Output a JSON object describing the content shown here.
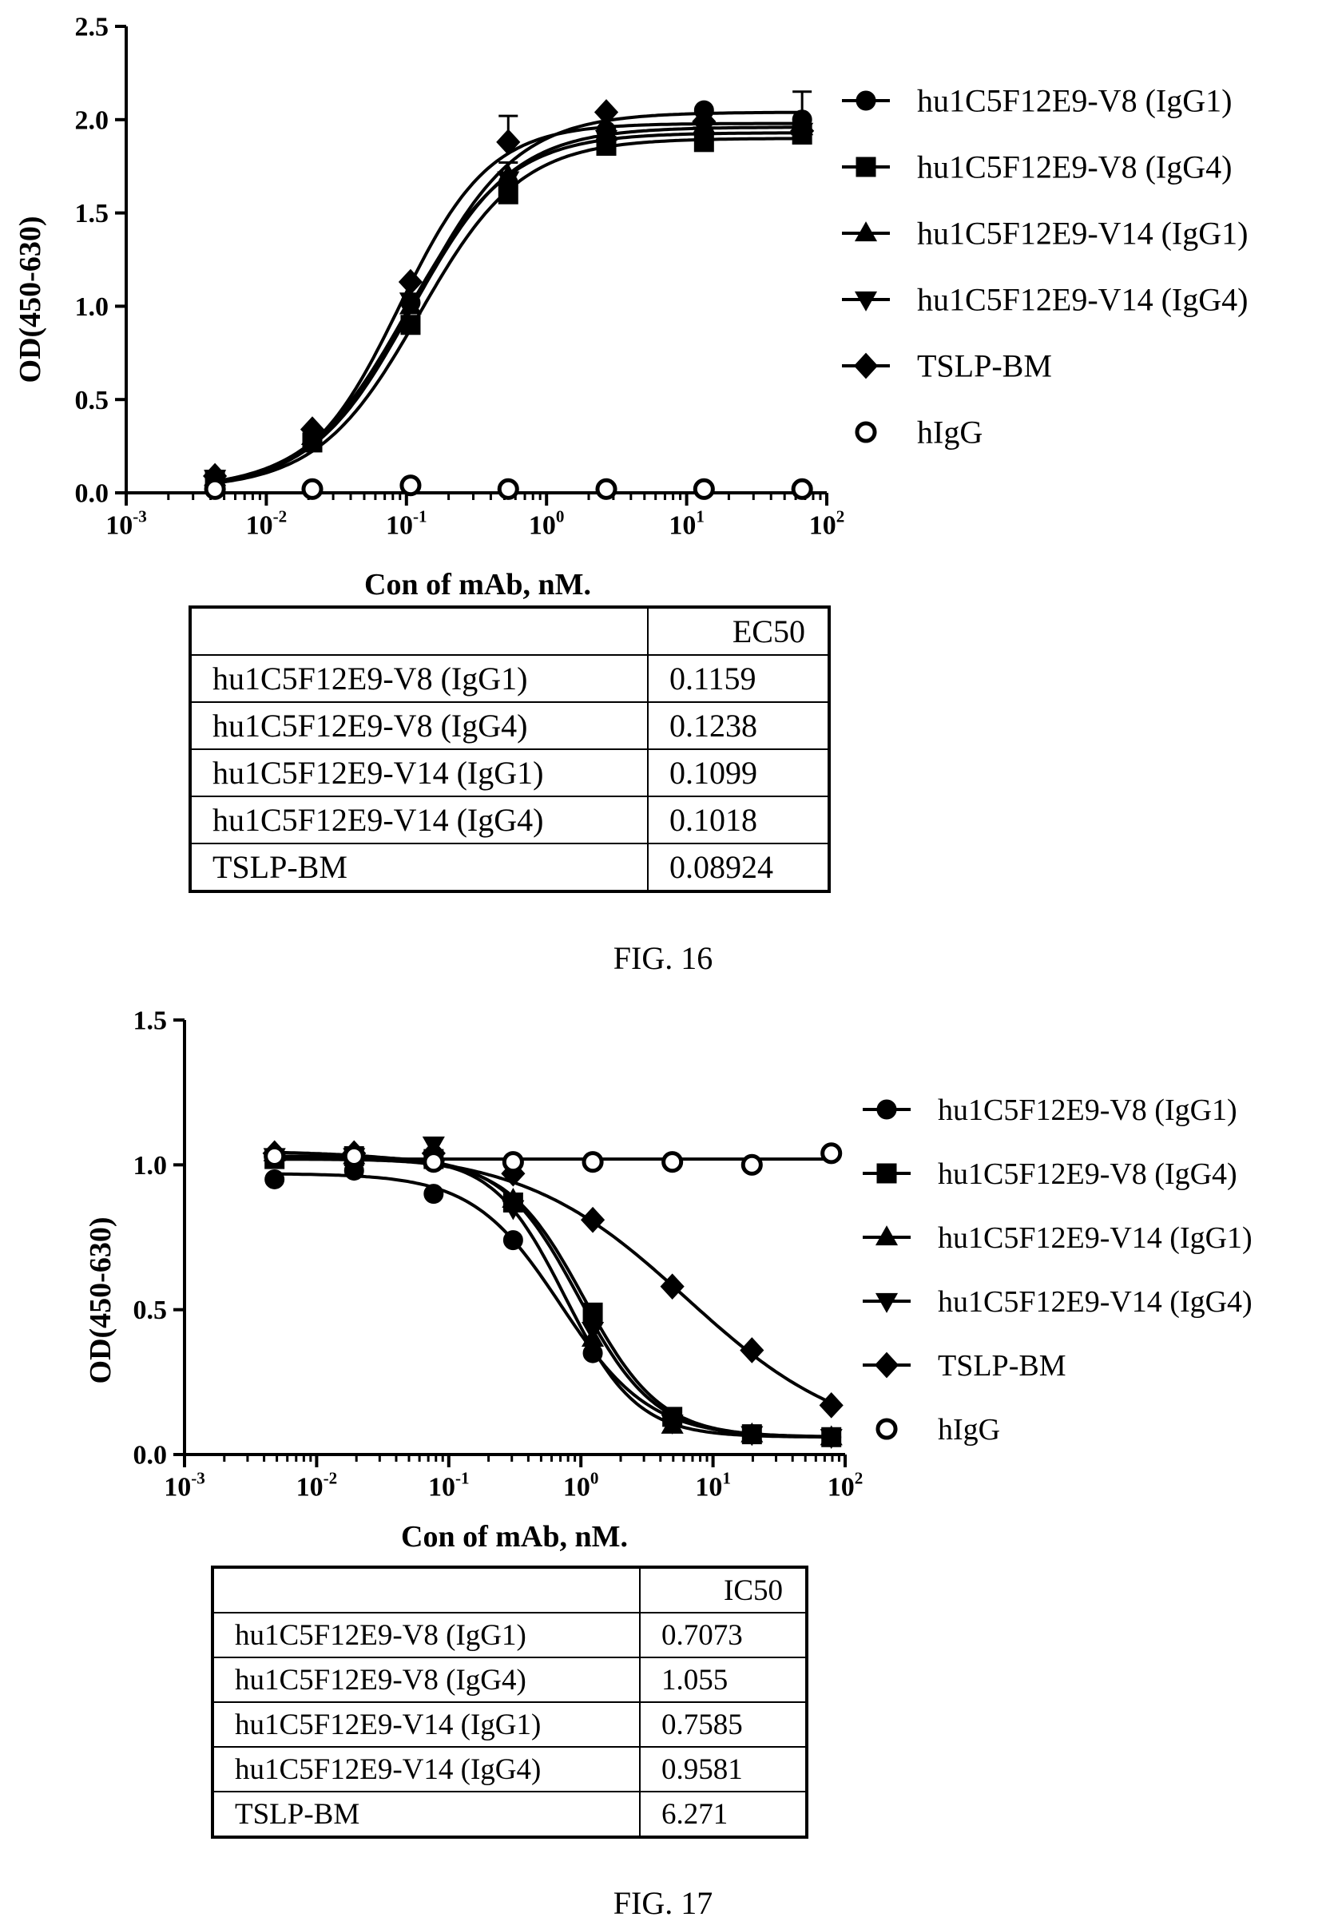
{
  "chart_data": [
    {
      "type": "scatter",
      "figure_label": "FIG. 16",
      "title": "",
      "xlabel": "Con of mAb, nM.",
      "ylabel": "OD(450-630)",
      "xscale": "log",
      "xlim": [
        0.001,
        100
      ],
      "ylim": [
        0,
        2.5
      ],
      "x_ticks": [
        0.001,
        0.01,
        0.1,
        1,
        10,
        100
      ],
      "x_tick_labels": [
        {
          "base": "10",
          "exp": "-3"
        },
        {
          "base": "10",
          "exp": "-2"
        },
        {
          "base": "10",
          "exp": "-1"
        },
        {
          "base": "10",
          "exp": "0"
        },
        {
          "base": "10",
          "exp": "1"
        },
        {
          "base": "10",
          "exp": "2"
        }
      ],
      "y_ticks": [
        0,
        0.5,
        1.0,
        1.5,
        2.0,
        2.5
      ],
      "y_tick_labels": [
        "0.0",
        "0.5",
        "1.0",
        "1.5",
        "2.0",
        "2.5"
      ],
      "grid": false,
      "legend_placement": "right",
      "x": [
        0.0043,
        0.0213,
        0.107,
        0.533,
        2.67,
        13.3,
        66.7
      ],
      "series": [
        {
          "name": "hu1C5F12E9-V8 (IgG1)",
          "marker": "circle",
          "values": [
            0.08,
            0.29,
            1.02,
            1.66,
            1.94,
            2.05,
            2.0
          ],
          "fit": {
            "bottom": 0.02,
            "top": 2.04,
            "ec50": 0.1159,
            "hill": 1.2
          }
        },
        {
          "name": "hu1C5F12E9-V8 (IgG4)",
          "marker": "square",
          "values": [
            0.07,
            0.27,
            0.9,
            1.6,
            1.86,
            1.88,
            1.92
          ],
          "fit": {
            "bottom": 0.02,
            "top": 1.9,
            "ec50": 0.1238,
            "hill": 1.2
          }
        },
        {
          "name": "hu1C5F12E9-V14 (IgG1)",
          "marker": "triangle-up",
          "values": [
            0.08,
            0.3,
            1.0,
            1.7,
            1.93,
            1.97,
            1.96
          ],
          "fit": {
            "bottom": 0.02,
            "top": 1.96,
            "ec50": 0.1099,
            "hill": 1.2
          }
        },
        {
          "name": "hu1C5F12E9-V14 (IgG4)",
          "marker": "triangle-down",
          "values": [
            0.08,
            0.3,
            1.03,
            1.68,
            1.9,
            1.92,
            1.94
          ],
          "fit": {
            "bottom": 0.02,
            "top": 1.93,
            "ec50": 0.1018,
            "hill": 1.2
          }
        },
        {
          "name": "TSLP-BM",
          "marker": "diamond",
          "values": [
            0.09,
            0.34,
            1.13,
            1.88,
            2.04,
            1.99,
            1.94
          ],
          "fit": {
            "bottom": 0.02,
            "top": 1.98,
            "ec50": 0.08924,
            "hill": 1.35
          }
        },
        {
          "name": "hIgG",
          "marker": "circle-open",
          "values": [
            0.02,
            0.02,
            0.04,
            0.02,
            0.02,
            0.02,
            0.02
          ],
          "fit": null
        }
      ],
      "error_bars": [
        {
          "series": "TSLP-BM",
          "x": 0.533,
          "upper": 2.02
        },
        {
          "series": "hu1C5F12E9-V14 (IgG1)",
          "x": 0.533,
          "upper": 1.77
        },
        {
          "series": "hu1C5F12E9-V8 (IgG1)",
          "x": 66.7,
          "upper": 2.15
        }
      ],
      "table": {
        "header": [
          "",
          "EC50"
        ],
        "rows": [
          [
            "hu1C5F12E9-V8 (IgG1)",
            "0.1159"
          ],
          [
            "hu1C5F12E9-V8 (IgG4)",
            "0.1238"
          ],
          [
            "hu1C5F12E9-V14 (IgG1)",
            "0.1099"
          ],
          [
            "hu1C5F12E9-V14 (IgG4)",
            "0.1018"
          ],
          [
            "TSLP-BM",
            "0.08924"
          ]
        ]
      }
    },
    {
      "type": "scatter",
      "figure_label": "FIG. 17",
      "title": "",
      "xlabel": "Con of mAb, nM.",
      "ylabel": "OD(450-630)",
      "xscale": "log",
      "xlim": [
        0.001,
        100
      ],
      "ylim": [
        0,
        1.5
      ],
      "x_ticks": [
        0.001,
        0.01,
        0.1,
        1,
        10,
        100
      ],
      "x_tick_labels": [
        {
          "base": "10",
          "exp": "-3"
        },
        {
          "base": "10",
          "exp": "-2"
        },
        {
          "base": "10",
          "exp": "-1"
        },
        {
          "base": "10",
          "exp": "0"
        },
        {
          "base": "10",
          "exp": "1"
        },
        {
          "base": "10",
          "exp": "2"
        }
      ],
      "y_ticks": [
        0,
        0.5,
        1.0,
        1.5
      ],
      "y_tick_labels": [
        "0.0",
        "0.5",
        "1.0",
        "1.5"
      ],
      "grid": false,
      "legend_placement": "right",
      "x": [
        0.0048,
        0.0192,
        0.0768,
        0.307,
        1.23,
        4.92,
        19.7,
        78.6
      ],
      "series": [
        {
          "name": "hu1C5F12E9-V8 (IgG1)",
          "marker": "circle",
          "values": [
            0.95,
            0.98,
            0.9,
            0.74,
            0.35,
            0.12,
            0.07,
            0.06
          ],
          "fit": {
            "bottom": 0.06,
            "top": 0.97,
            "ic50": 0.7073,
            "hill": 1.3
          }
        },
        {
          "name": "hu1C5F12E9-V8 (IgG4)",
          "marker": "square",
          "values": [
            1.02,
            1.03,
            1.02,
            0.87,
            0.49,
            0.13,
            0.07,
            0.06
          ],
          "fit": {
            "bottom": 0.06,
            "top": 1.02,
            "ic50": 1.055,
            "hill": 1.5
          }
        },
        {
          "name": "hu1C5F12E9-V14 (IgG1)",
          "marker": "triangle-up",
          "values": [
            1.04,
            1.03,
            1.04,
            0.88,
            0.4,
            0.1,
            0.07,
            0.06
          ],
          "fit": {
            "bottom": 0.06,
            "top": 1.03,
            "ic50": 0.7585,
            "hill": 1.6
          }
        },
        {
          "name": "hu1C5F12E9-V14 (IgG4)",
          "marker": "triangle-down",
          "values": [
            1.03,
            1.03,
            1.07,
            0.85,
            0.43,
            0.11,
            0.07,
            0.06
          ],
          "fit": {
            "bottom": 0.06,
            "top": 1.03,
            "ic50": 0.9581,
            "hill": 1.5
          }
        },
        {
          "name": "TSLP-BM",
          "marker": "diamond",
          "values": [
            1.04,
            1.04,
            1.04,
            0.97,
            0.81,
            0.58,
            0.36,
            0.17
          ],
          "fit": {
            "bottom": 0.03,
            "top": 1.05,
            "ic50": 6.271,
            "hill": 0.7
          }
        },
        {
          "name": "hIgG",
          "marker": "circle-open",
          "values": [
            1.03,
            1.03,
            1.01,
            1.01,
            1.01,
            1.01,
            1.0,
            1.04
          ],
          "fit": {
            "bottom": 1.02,
            "top": 1.02,
            "ic50": 1,
            "hill": 1
          }
        }
      ],
      "table": {
        "header": [
          "",
          "IC50"
        ],
        "rows": [
          [
            "hu1C5F12E9-V8 (IgG1)",
            "0.7073"
          ],
          [
            "hu1C5F12E9-V8 (IgG4)",
            "1.055"
          ],
          [
            "hu1C5F12E9-V14 (IgG1)",
            "0.7585"
          ],
          [
            "hu1C5F12E9-V14 (IgG4)",
            "0.9581"
          ],
          [
            "TSLP-BM",
            "6.271"
          ]
        ]
      }
    }
  ]
}
